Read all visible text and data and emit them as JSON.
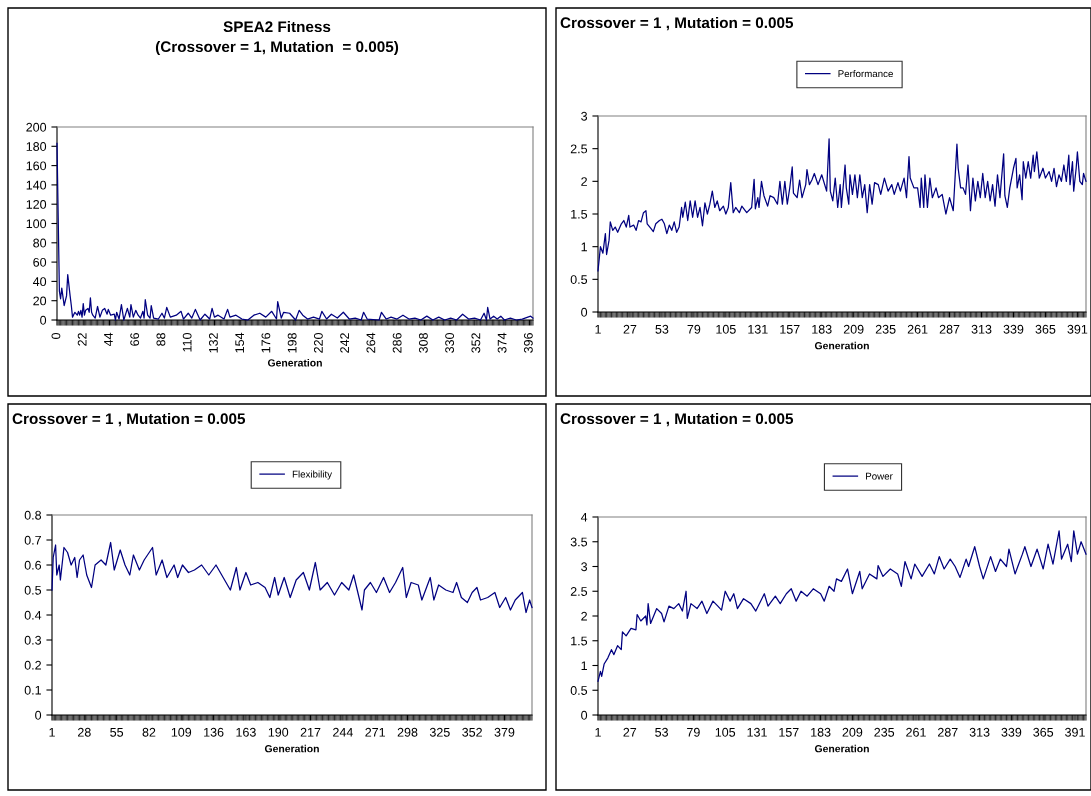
{
  "chart_data": [
    {
      "type": "line",
      "title": "SPEA2 Fitness",
      "subtitle": "(Crossover = 1, Mutation  = 0.005)",
      "xlabel": "Generation",
      "xlim": [
        0,
        399
      ],
      "xticks": [
        0,
        22,
        44,
        66,
        88,
        110,
        132,
        154,
        176,
        198,
        220,
        242,
        264,
        286,
        308,
        330,
        352,
        374,
        396
      ],
      "ylim": [
        0,
        200
      ],
      "yticks": [
        0,
        20,
        40,
        60,
        80,
        100,
        120,
        140,
        160,
        180,
        200
      ],
      "grid": false,
      "legend": false,
      "series": [
        {
          "color": "#000080",
          "x": [
            0,
            2,
            3,
            4,
            6,
            8,
            9,
            11,
            12,
            13,
            15,
            17,
            18,
            19,
            20,
            21,
            22,
            23,
            24,
            26,
            27,
            28,
            29,
            30,
            32,
            34,
            36,
            38,
            40,
            42,
            43,
            45,
            48,
            49,
            50,
            52,
            54,
            56,
            59,
            61,
            62,
            64,
            66,
            68,
            70,
            72,
            73,
            74,
            76,
            78,
            79,
            81,
            85,
            88,
            90,
            92,
            95,
            100,
            104,
            106,
            110,
            113,
            116,
            120,
            124,
            128,
            130,
            132,
            135,
            140,
            143,
            145,
            150,
            155,
            160,
            165,
            170,
            175,
            180,
            184,
            185,
            188,
            190,
            195,
            200,
            203,
            206,
            210,
            215,
            220,
            222,
            226,
            230,
            235,
            240,
            245,
            250,
            255,
            257,
            260,
            270,
            272,
            276,
            280,
            285,
            290,
            295,
            300,
            305,
            310,
            315,
            320,
            325,
            330,
            335,
            340,
            345,
            350,
            355,
            358,
            360,
            361,
            363,
            366,
            369,
            372,
            375,
            380,
            385,
            390,
            397,
            399
          ],
          "values": [
            183,
            30,
            22,
            33,
            15,
            25,
            47,
            25,
            15,
            3,
            8,
            5,
            9,
            5,
            10,
            3,
            17,
            5,
            10,
            12,
            8,
            23,
            8,
            5,
            2,
            14,
            3,
            10,
            12,
            6,
            11,
            5,
            6,
            0,
            8,
            1,
            16,
            0,
            12,
            3,
            16,
            3,
            10,
            5,
            2,
            9,
            2,
            21,
            5,
            2,
            15,
            2,
            1,
            7,
            2,
            13,
            3,
            5,
            9,
            1,
            7,
            2,
            11,
            0,
            6,
            1,
            12,
            3,
            5,
            1,
            11,
            3,
            5,
            1,
            0,
            5,
            7,
            3,
            9,
            1,
            19,
            2,
            8,
            7,
            0,
            10,
            5,
            1,
            3,
            1,
            9,
            1,
            6,
            2,
            8,
            1,
            2,
            0,
            8,
            1,
            0,
            8,
            1,
            3,
            1,
            5,
            1,
            2,
            0,
            4,
            0,
            3,
            0,
            2,
            0,
            6,
            1,
            2,
            0,
            7,
            0,
            13,
            1,
            4,
            1,
            4,
            0,
            2,
            0,
            1,
            4,
            2
          ]
        }
      ]
    },
    {
      "type": "line",
      "title": "Crossover = 1 , Mutation = 0.005",
      "xlabel": "Generation",
      "xlim": [
        1,
        398
      ],
      "xticks": [
        1,
        27,
        53,
        79,
        105,
        131,
        157,
        183,
        209,
        235,
        261,
        287,
        313,
        339,
        365,
        391
      ],
      "ylim": [
        0,
        3
      ],
      "yticks": [
        0,
        0.5,
        1,
        1.5,
        2,
        2.5,
        3
      ],
      "grid": false,
      "legend": "top",
      "series": [
        {
          "name": "Performance",
          "color": "#000080",
          "x": [
            1,
            3,
            5,
            7,
            8,
            10,
            11,
            13,
            15,
            17,
            20,
            22,
            24,
            26,
            27,
            30,
            32,
            34,
            36,
            38,
            40,
            41,
            44,
            46,
            48,
            51,
            53,
            55,
            57,
            59,
            61,
            63,
            65,
            67,
            69,
            70,
            72,
            74,
            76,
            78,
            80,
            82,
            84,
            86,
            88,
            90,
            92,
            94,
            96,
            98,
            100,
            103,
            105,
            107,
            109,
            111,
            113,
            116,
            118,
            122,
            126,
            128,
            129,
            131,
            132,
            134,
            136,
            139,
            141,
            144,
            147,
            149,
            151,
            153,
            155,
            157,
            159,
            160,
            163,
            165,
            167,
            170,
            171,
            173,
            175,
            177,
            180,
            183,
            187,
            189,
            190,
            192,
            194,
            196,
            198,
            199,
            202,
            203,
            205,
            206,
            208,
            210,
            212,
            214,
            216,
            218,
            220,
            222,
            224,
            226,
            229,
            231,
            234,
            237,
            240,
            242,
            245,
            247,
            250,
            252,
            254,
            255,
            258,
            261,
            263,
            264,
            266,
            267,
            269,
            271,
            273,
            276,
            278,
            281,
            284,
            287,
            290,
            293,
            294,
            296,
            298,
            300,
            302,
            304,
            306,
            308,
            310,
            312,
            314,
            316,
            318,
            320,
            322,
            324,
            326,
            328,
            331,
            332,
            334,
            336,
            339,
            341,
            342,
            344,
            346,
            347,
            349,
            351,
            353,
            355,
            356,
            358,
            360,
            363,
            365,
            368,
            370,
            372,
            374,
            376,
            378,
            380,
            382,
            384,
            385,
            387,
            388,
            390,
            391,
            393,
            395,
            396,
            398
          ],
          "values": [
            0.63,
            1.0,
            0.9,
            1.2,
            0.88,
            1.1,
            1.38,
            1.25,
            1.3,
            1.22,
            1.35,
            1.4,
            1.3,
            1.48,
            1.3,
            1.33,
            1.25,
            1.4,
            1.38,
            1.52,
            1.55,
            1.35,
            1.28,
            1.23,
            1.35,
            1.4,
            1.42,
            1.35,
            1.2,
            1.33,
            1.25,
            1.38,
            1.22,
            1.3,
            1.6,
            1.45,
            1.68,
            1.4,
            1.7,
            1.45,
            1.7,
            1.45,
            1.6,
            1.32,
            1.67,
            1.5,
            1.65,
            1.85,
            1.6,
            1.7,
            1.55,
            1.62,
            1.5,
            1.6,
            1.98,
            1.52,
            1.6,
            1.52,
            1.62,
            1.52,
            1.6,
            2.03,
            1.58,
            1.75,
            1.6,
            2.0,
            1.78,
            1.62,
            1.78,
            1.75,
            1.65,
            2.0,
            1.65,
            2.0,
            1.65,
            1.9,
            2.22,
            1.82,
            1.75,
            2.02,
            1.75,
            1.95,
            2.18,
            1.95,
            2.02,
            2.12,
            1.95,
            2.1,
            1.85,
            2.65,
            1.85,
            1.7,
            2.05,
            1.6,
            1.95,
            1.6,
            2.25,
            1.9,
            1.65,
            2.1,
            1.8,
            2.1,
            1.75,
            2.1,
            1.75,
            1.95,
            1.52,
            1.95,
            1.65,
            1.98,
            1.95,
            1.8,
            2.05,
            1.85,
            1.95,
            1.8,
            1.98,
            1.85,
            2.05,
            1.75,
            2.38,
            2.05,
            1.9,
            1.9,
            1.6,
            2.05,
            1.6,
            2.1,
            1.6,
            2.05,
            1.75,
            1.9,
            1.75,
            1.8,
            1.5,
            1.75,
            1.55,
            2.57,
            2.2,
            1.9,
            1.9,
            1.8,
            2.25,
            1.55,
            2.05,
            1.7,
            2.0,
            1.75,
            2.12,
            1.75,
            2.0,
            1.7,
            1.95,
            1.62,
            2.1,
            1.75,
            2.42,
            1.78,
            1.6,
            1.9,
            2.2,
            2.35,
            1.9,
            2.1,
            1.72,
            2.3,
            2.05,
            2.3,
            2.05,
            2.4,
            2.15,
            2.45,
            2.05,
            2.2,
            2.05,
            2.15,
            2.0,
            2.2,
            1.92,
            2.1,
            2.0,
            2.25,
            2.0,
            2.4,
            1.95,
            2.3,
            1.85,
            2.2,
            2.45,
            2.0,
            1.95,
            2.12,
            2.0
          ]
        }
      ]
    },
    {
      "type": "line",
      "title": "Crossover = 1 , Mutation = 0.005",
      "xlabel": "Generation",
      "xlim": [
        1,
        402
      ],
      "xticks": [
        1,
        28,
        55,
        82,
        109,
        136,
        163,
        190,
        217,
        244,
        271,
        298,
        325,
        352,
        379
      ],
      "ylim": [
        0,
        0.8
      ],
      "yticks": [
        0,
        0.1,
        0.2,
        0.3,
        0.4,
        0.5,
        0.6,
        0.7,
        0.8
      ],
      "grid": false,
      "legend": "top",
      "series": [
        {
          "name": "Flexibility",
          "color": "#000080",
          "x": [
            1,
            2,
            4,
            5,
            7,
            8,
            11,
            14,
            17,
            20,
            22,
            24,
            27,
            30,
            34,
            37,
            42,
            46,
            50,
            53,
            58,
            62,
            66,
            69,
            74,
            78,
            85,
            88,
            93,
            97,
            103,
            106,
            110,
            115,
            120,
            126,
            132,
            138,
            144,
            150,
            155,
            158,
            163,
            167,
            173,
            179,
            183,
            187,
            190,
            195,
            200,
            205,
            211,
            216,
            221,
            225,
            231,
            237,
            243,
            249,
            253,
            257,
            260,
            262,
            267,
            272,
            278,
            283,
            288,
            294,
            297,
            301,
            307,
            310,
            317,
            320,
            324,
            330,
            336,
            339,
            343,
            348,
            352,
            356,
            359,
            365,
            371,
            375,
            380,
            384,
            388,
            394,
            397,
            400,
            402
          ],
          "values": [
            0.5,
            0.63,
            0.68,
            0.56,
            0.6,
            0.54,
            0.67,
            0.65,
            0.6,
            0.63,
            0.55,
            0.62,
            0.64,
            0.56,
            0.51,
            0.6,
            0.62,
            0.6,
            0.69,
            0.58,
            0.66,
            0.6,
            0.56,
            0.64,
            0.58,
            0.62,
            0.67,
            0.56,
            0.62,
            0.55,
            0.6,
            0.55,
            0.6,
            0.57,
            0.58,
            0.6,
            0.56,
            0.6,
            0.55,
            0.5,
            0.59,
            0.5,
            0.57,
            0.52,
            0.53,
            0.51,
            0.47,
            0.55,
            0.48,
            0.55,
            0.47,
            0.54,
            0.57,
            0.5,
            0.61,
            0.5,
            0.53,
            0.48,
            0.53,
            0.5,
            0.56,
            0.48,
            0.42,
            0.5,
            0.53,
            0.49,
            0.55,
            0.49,
            0.53,
            0.59,
            0.47,
            0.53,
            0.52,
            0.46,
            0.55,
            0.46,
            0.52,
            0.5,
            0.49,
            0.53,
            0.47,
            0.45,
            0.49,
            0.51,
            0.46,
            0.47,
            0.49,
            0.43,
            0.47,
            0.42,
            0.46,
            0.49,
            0.41,
            0.46,
            0.43
          ]
        }
      ]
    },
    {
      "type": "line",
      "title": "Crossover = 1 , Mutation = 0.005",
      "xlabel": "Generation",
      "xlim": [
        1,
        400
      ],
      "xticks": [
        1,
        27,
        53,
        79,
        105,
        131,
        157,
        183,
        209,
        235,
        261,
        287,
        313,
        339,
        365,
        391
      ],
      "ylim": [
        0,
        4
      ],
      "yticks": [
        0,
        0.5,
        1,
        1.5,
        2,
        2.5,
        3,
        3.5,
        4
      ],
      "grid": false,
      "legend": "top",
      "series": [
        {
          "name": "Power",
          "color": "#000080",
          "x": [
            1,
            3,
            4,
            6,
            9,
            12,
            14,
            17,
            20,
            21,
            24,
            28,
            32,
            33,
            36,
            40,
            41,
            42,
            44,
            49,
            53,
            55,
            59,
            63,
            67,
            70,
            73,
            74,
            77,
            82,
            86,
            90,
            95,
            99,
            102,
            105,
            109,
            112,
            115,
            120,
            126,
            130,
            137,
            140,
            146,
            150,
            155,
            159,
            163,
            167,
            172,
            177,
            183,
            186,
            190,
            194,
            196,
            200,
            205,
            209,
            215,
            217,
            223,
            229,
            230,
            234,
            240,
            246,
            249,
            252,
            257,
            260,
            266,
            272,
            276,
            280,
            284,
            289,
            293,
            297,
            302,
            304,
            309,
            313,
            316,
            322,
            326,
            330,
            335,
            337,
            342,
            348,
            350,
            355,
            360,
            365,
            369,
            373,
            378,
            380,
            385,
            388,
            390,
            393,
            396,
            400
          ],
          "values": [
            0.68,
            0.88,
            0.78,
            1.03,
            1.15,
            1.32,
            1.22,
            1.4,
            1.32,
            1.68,
            1.6,
            1.75,
            1.72,
            2.03,
            1.9,
            2.0,
            1.82,
            2.25,
            1.85,
            2.15,
            2.05,
            1.88,
            2.2,
            2.15,
            2.25,
            2.1,
            2.5,
            1.95,
            2.25,
            2.15,
            2.3,
            2.05,
            2.3,
            2.2,
            2.12,
            2.5,
            2.3,
            2.45,
            2.15,
            2.35,
            2.25,
            2.1,
            2.45,
            2.2,
            2.4,
            2.25,
            2.45,
            2.55,
            2.3,
            2.5,
            2.4,
            2.55,
            2.45,
            2.3,
            2.6,
            2.5,
            2.75,
            2.7,
            2.95,
            2.45,
            2.9,
            2.55,
            2.85,
            2.75,
            3.02,
            2.8,
            2.95,
            2.85,
            2.6,
            3.1,
            2.75,
            3.05,
            2.8,
            3.05,
            2.85,
            3.2,
            2.95,
            3.15,
            3.0,
            2.78,
            3.15,
            3.0,
            3.4,
            3.0,
            2.75,
            3.2,
            2.9,
            3.15,
            3.0,
            3.35,
            2.85,
            3.25,
            3.4,
            3.0,
            3.35,
            2.95,
            3.45,
            3.05,
            3.72,
            3.15,
            3.45,
            3.1,
            3.72,
            3.25,
            3.5,
            3.25
          ]
        }
      ]
    }
  ]
}
